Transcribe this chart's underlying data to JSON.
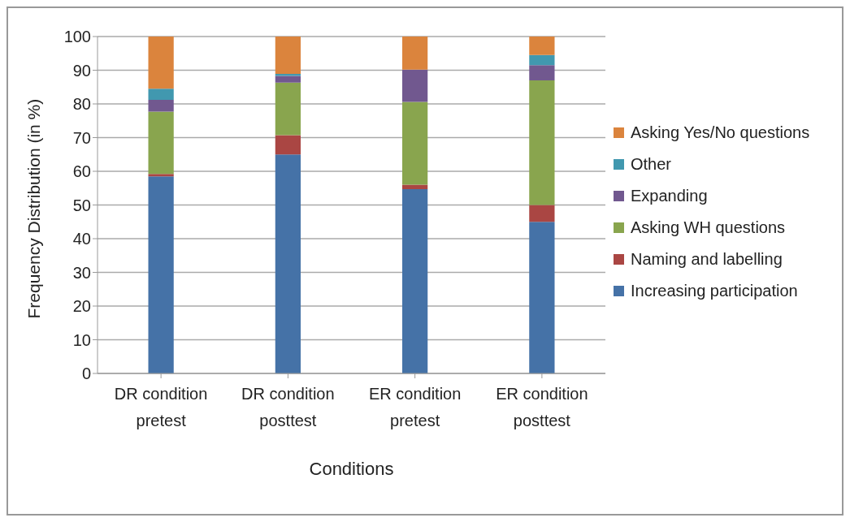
{
  "chart_data": {
    "type": "bar",
    "stacked": true,
    "xlabel": "Conditions",
    "ylabel": "Frequency Distribution (in %)",
    "categories": [
      "DR condition pretest",
      "DR condition posttest",
      "ER condition pretest",
      "ER condition posttest"
    ],
    "series": [
      {
        "name": "Increasing participation",
        "color": "#4572a7",
        "values": [
          58.5,
          65,
          54.7,
          45
        ]
      },
      {
        "name": "Naming and labelling",
        "color": "#aa4643",
        "values": [
          0.7,
          5.7,
          1.3,
          5
        ]
      },
      {
        "name": "Asking WH questions",
        "color": "#89a54e",
        "values": [
          18.5,
          15.6,
          24.6,
          37
        ]
      },
      {
        "name": "Expanding",
        "color": "#71588f",
        "values": [
          3.5,
          2,
          9.6,
          4.5
        ]
      },
      {
        "name": "Other",
        "color": "#4198af",
        "values": [
          3.3,
          0.6,
          0,
          3
        ]
      },
      {
        "name": "Asking Yes/No questions",
        "color": "#db843d",
        "values": [
          15.5,
          11.1,
          9.8,
          5.5
        ]
      }
    ],
    "ylim": [
      0,
      100
    ],
    "yticks": [
      0,
      10,
      20,
      30,
      40,
      50,
      60,
      70,
      80,
      90,
      100
    ],
    "grid": "y",
    "legend": "right"
  }
}
